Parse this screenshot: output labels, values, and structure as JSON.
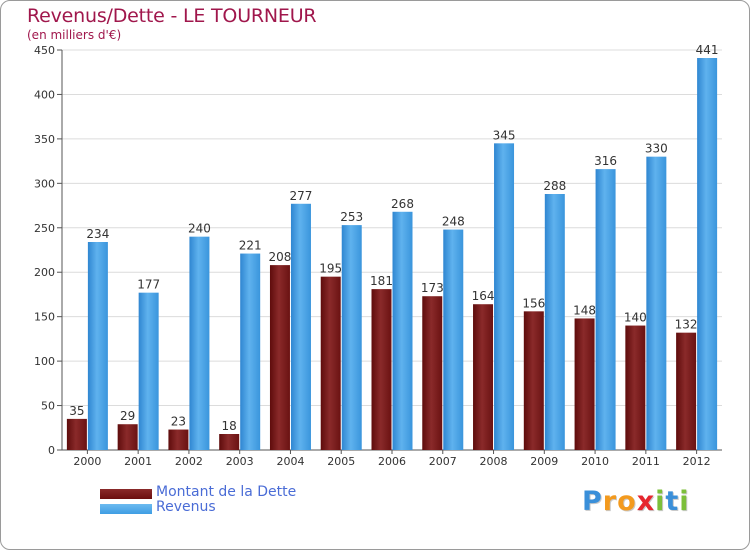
{
  "chart_data": {
    "type": "bar",
    "title": "Revenus/Dette - LE TOURNEUR",
    "subtitle": "(en milliers d'€)",
    "xlabel": "",
    "ylabel": "",
    "ylim": [
      0,
      450
    ],
    "yticks": [
      0,
      50,
      100,
      150,
      200,
      250,
      300,
      350,
      400,
      450
    ],
    "grid": true,
    "categories": [
      "2000",
      "2001",
      "2002",
      "2003",
      "2004",
      "2005",
      "2006",
      "2007",
      "2008",
      "2009",
      "2010",
      "2011",
      "2012"
    ],
    "series": [
      {
        "name": "Montant de la Dette",
        "color": "#7a1a1a",
        "values": [
          35,
          29,
          23,
          18,
          208,
          195,
          181,
          173,
          164,
          156,
          148,
          140,
          132
        ]
      },
      {
        "name": "Revenus",
        "color": "#4aa3e6",
        "values": [
          234,
          177,
          240,
          221,
          277,
          253,
          268,
          248,
          345,
          288,
          316,
          330,
          441
        ]
      }
    ],
    "legend_position": "bottom-left"
  },
  "legend": {
    "items": [
      {
        "label": "Montant de la Dette",
        "color": "#6b0f0f"
      },
      {
        "label": "Revenus",
        "color": "#3f9de3"
      }
    ]
  },
  "logo": {
    "letters": [
      {
        "ch": "P",
        "color": "#3a8fd9"
      },
      {
        "ch": "r",
        "color": "#f39a1e"
      },
      {
        "ch": "o",
        "color": "#f39a1e"
      },
      {
        "ch": "x",
        "color": "#e6262e"
      },
      {
        "ch": "i",
        "color": "#7cbf3a"
      },
      {
        "ch": "t",
        "color": "#3a8fd9"
      },
      {
        "ch": "i",
        "color": "#7cbf3a"
      }
    ]
  }
}
